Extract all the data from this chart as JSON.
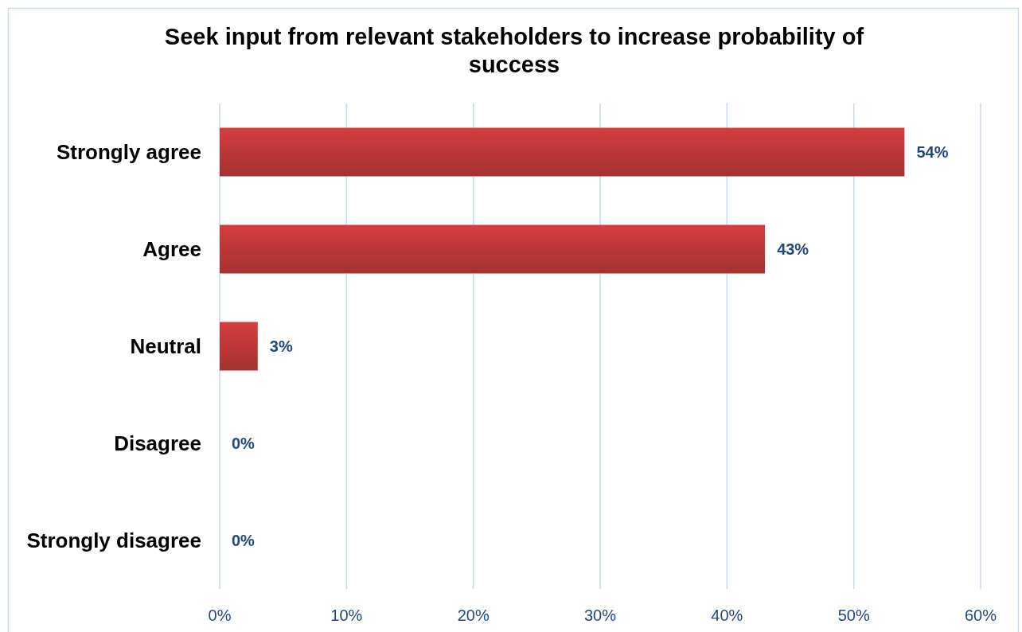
{
  "chart_data": {
    "type": "bar",
    "orientation": "horizontal",
    "title": "Seek input from relevant stakeholders to increase probability of success",
    "categories": [
      "Strongly agree",
      "Agree",
      "Neutral",
      "Disagree",
      "Strongly disagree"
    ],
    "values": [
      54,
      43,
      3,
      0,
      0
    ],
    "color": "#bc3737",
    "value_labels": [
      "54%",
      "43%",
      "3%",
      "0%",
      "0%"
    ],
    "xlim": [
      0,
      60
    ],
    "xticks": [
      {
        "value": 0,
        "label": "0%"
      },
      {
        "value": 10,
        "label": "10%"
      },
      {
        "value": 20,
        "label": "20%"
      },
      {
        "value": 30,
        "label": "30%"
      },
      {
        "value": 40,
        "label": "40%"
      },
      {
        "value": 50,
        "label": "50%"
      },
      {
        "value": 60,
        "label": "60%"
      }
    ],
    "grid": "x"
  }
}
